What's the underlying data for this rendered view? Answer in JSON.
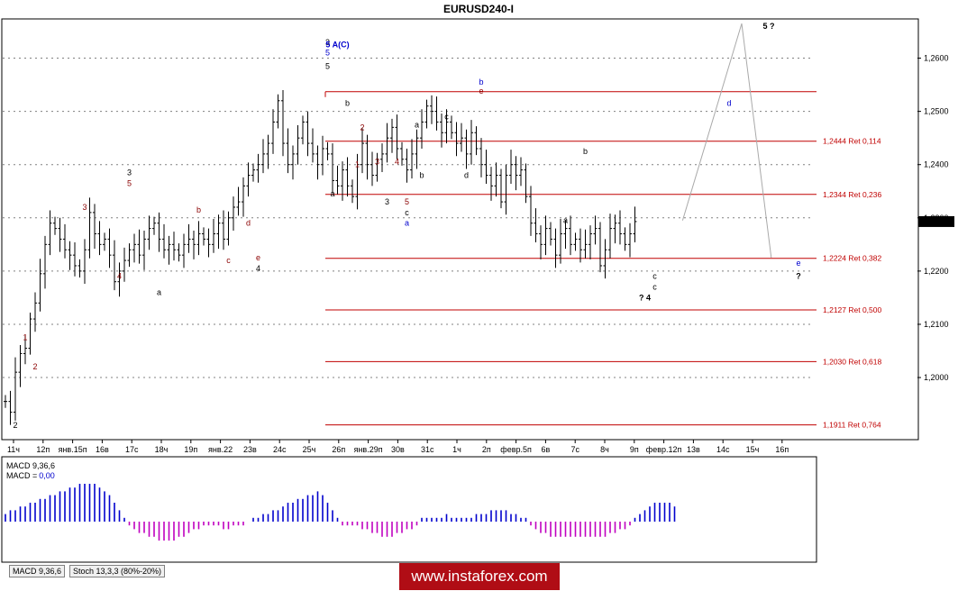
{
  "chart_data": {
    "type": "ohlc",
    "title": "EURUSD240-I",
    "symbol": "EURUSD",
    "timeframe": "H4",
    "last_price": "1,2293",
    "ylim": [
      1.1885,
      1.2672
    ],
    "y_ticks": [
      "1,2000",
      "1,2100",
      "1,2200",
      "1,2300",
      "1,2400",
      "1,2500",
      "1,2600"
    ],
    "x_labels": [
      "11ч",
      "12п",
      "янв.15п",
      "16в",
      "17с",
      "18ч",
      "19п",
      "янв.22",
      "23в",
      "24с",
      "25ч",
      "26п",
      "янв.29п",
      "30в",
      "31с",
      "1ч",
      "2п",
      "февр.5п",
      "6в",
      "7с",
      "8ч",
      "9п",
      "февр.12п",
      "13в",
      "14с",
      "15ч",
      "16п"
    ],
    "price_path": [
      1.1955,
      1.1935,
      1.201,
      1.2045,
      1.2055,
      1.211,
      1.214,
      1.2195,
      1.225,
      1.229,
      1.228,
      1.226,
      1.224,
      1.223,
      1.221,
      1.22,
      1.224,
      1.231,
      1.227,
      1.225,
      1.226,
      1.223,
      1.218,
      1.22,
      1.222,
      1.224,
      1.225,
      1.223,
      1.226,
      1.228,
      1.229,
      1.226,
      1.224,
      1.225,
      1.224,
      1.223,
      1.225,
      1.226,
      1.225,
      1.227,
      1.226,
      1.225,
      1.227,
      1.229,
      1.226,
      1.23,
      1.232,
      1.233,
      1.236,
      1.238,
      1.239,
      1.24,
      1.242,
      1.244,
      1.248,
      1.252,
      1.244,
      1.24,
      1.242,
      1.245,
      1.248,
      1.244,
      1.242,
      1.24,
      1.243,
      1.242,
      1.237,
      1.236,
      1.239,
      1.236,
      1.234,
      1.24,
      1.244,
      1.24,
      1.238,
      1.241,
      1.242,
      1.245,
      1.247,
      1.243,
      1.241,
      1.239,
      1.242,
      1.245,
      1.248,
      1.251,
      1.25,
      1.248,
      1.246,
      1.248,
      1.246,
      1.244,
      1.245,
      1.242,
      1.246,
      1.243,
      1.24,
      1.238,
      1.236,
      1.238,
      1.233,
      1.238,
      1.24,
      1.238,
      1.239,
      1.234,
      1.229,
      1.227,
      1.225,
      1.228,
      1.226,
      1.223,
      1.227,
      1.228,
      1.225,
      1.226,
      1.224,
      1.225,
      1.227,
      1.228,
      1.221,
      1.224,
      1.228,
      1.229,
      1.227,
      1.225,
      1.227,
      1.2293
    ],
    "fib_levels": [
      {
        "label": "1,2444 Ret 0,114",
        "value": 1.2444
      },
      {
        "label": "1,2344 Ret 0,236",
        "value": 1.2344
      },
      {
        "label": "1,2224 Ret 0,382",
        "value": 1.2224
      },
      {
        "label": "1,2127 Ret 0,500",
        "value": 1.2127
      },
      {
        "label": "1,2030 Ret 0,618",
        "value": 1.203
      },
      {
        "label": "1,1911 Ret 0,764",
        "value": 1.1911
      }
    ],
    "fib_top": 1.2537,
    "projection": [
      {
        "x": "13в",
        "y": 1.2295
      },
      {
        "x": "15ч",
        "y": 1.2665
      },
      {
        "x": "16п",
        "y": 1.2225
      }
    ],
    "wave_labels": [
      {
        "text": "2",
        "color": "#000000",
        "bar": 2,
        "price": 1.1905
      },
      {
        "text": "1",
        "color": "#8b0000",
        "bar": 4,
        "price": 1.207
      },
      {
        "text": "2",
        "color": "#8b0000",
        "bar": 6,
        "price": 1.2015
      },
      {
        "text": "3",
        "color": "#8b0000",
        "bar": 16,
        "price": 1.2315
      },
      {
        "text": "4",
        "color": "#8b0000",
        "bar": 23,
        "price": 1.2185
      },
      {
        "text": "3",
        "color": "#000000",
        "bar": 25,
        "price": 1.238
      },
      {
        "text": "5",
        "color": "#8b0000",
        "bar": 25,
        "price": 1.236
      },
      {
        "text": "a",
        "color": "#000000",
        "bar": 31,
        "price": 1.2155
      },
      {
        "text": "b",
        "color": "#8b0000",
        "bar": 39,
        "price": 1.231
      },
      {
        "text": "c",
        "color": "#8b0000",
        "bar": 45,
        "price": 1.2215
      },
      {
        "text": "d",
        "color": "#8b0000",
        "bar": 49,
        "price": 1.2285
      },
      {
        "text": "e",
        "color": "#8b0000",
        "bar": 51,
        "price": 1.222
      },
      {
        "text": "4",
        "color": "#000000",
        "bar": 51,
        "price": 1.22
      },
      {
        "text": "3",
        "color": "#000000",
        "bar": 65,
        "price": 1.2625
      },
      {
        "text": "5",
        "color": "#0000cd",
        "bar": 65,
        "price": 1.2605
      },
      {
        "text": "5",
        "color": "#000000",
        "bar": 65,
        "price": 1.258
      },
      {
        "text": "a",
        "color": "#000000",
        "bar": 66,
        "price": 1.234
      },
      {
        "text": "b",
        "color": "#000000",
        "bar": 69,
        "price": 1.251
      },
      {
        "text": "2",
        "color": "#8b0000",
        "bar": 72,
        "price": 1.2465
      },
      {
        "text": "1",
        "color": "#8b0000",
        "bar": 71,
        "price": 1.2395
      },
      {
        "text": "3",
        "color": "#8b0000",
        "bar": 75,
        "price": 1.24
      },
      {
        "text": "4",
        "color": "#8b0000",
        "bar": 79,
        "price": 1.24
      },
      {
        "text": "3",
        "color": "#000000",
        "bar": 77,
        "price": 1.2325
      },
      {
        "text": "a",
        "color": "#000000",
        "bar": 83,
        "price": 1.247
      },
      {
        "text": "5",
        "color": "#8b0000",
        "bar": 81,
        "price": 1.2325
      },
      {
        "text": "c",
        "color": "#000000",
        "bar": 81,
        "price": 1.2305
      },
      {
        "text": "a",
        "color": "#0000cd",
        "bar": 81,
        "price": 1.2285
      },
      {
        "text": "b",
        "color": "#000000",
        "bar": 84,
        "price": 1.2375
      },
      {
        "text": "c",
        "color": "#000000",
        "bar": 89,
        "price": 1.2485
      },
      {
        "text": "d",
        "color": "#000000",
        "bar": 93,
        "price": 1.2375
      },
      {
        "text": "b",
        "color": "#0000cd",
        "bar": 96,
        "price": 1.255
      },
      {
        "text": "e",
        "color": "#8b0000",
        "bar": 96,
        "price": 1.2533
      },
      {
        "text": "b",
        "color": "#000000",
        "bar": 117,
        "price": 1.242
      },
      {
        "text": "a",
        "color": "#000000",
        "bar": 113,
        "price": 1.229
      },
      {
        "text": "c",
        "color": "#000000",
        "bar": 131,
        "price": 1.2185
      },
      {
        "text": "c",
        "color": "#000000",
        "bar": 131,
        "price": 1.2165
      },
      {
        "text": "? 4",
        "color": "#000000",
        "bar": 129,
        "price": 1.2145
      },
      {
        "text": "5 A(C)",
        "color": "#0000cd",
        "bar": 67,
        "price": 1.262
      },
      {
        "text": "d",
        "color": "#0000cd",
        "bar": 146,
        "price": 1.251
      },
      {
        "text": "5 ?",
        "color": "#000000",
        "bar": 154,
        "price": 1.2655
      },
      {
        "text": "e",
        "color": "#0000cd",
        "bar": 160,
        "price": 1.221
      },
      {
        "text": "?",
        "color": "#000000",
        "bar": 160,
        "price": 1.2185
      }
    ],
    "macd": {
      "label": "MACD 9,36,6",
      "label2": "MACD =",
      "value": "0,00",
      "histogram": [
        2,
        3,
        3,
        4,
        4,
        5,
        5,
        6,
        6,
        7,
        7,
        8,
        8,
        9,
        9,
        10,
        10,
        10,
        10,
        9,
        8,
        7,
        5,
        3,
        1,
        -1,
        -2,
        -3,
        -3,
        -4,
        -4,
        -5,
        -5,
        -5,
        -5,
        -4,
        -4,
        -3,
        -2,
        -2,
        -1,
        -1,
        -1,
        -1,
        -2,
        -2,
        -1,
        -1,
        -1,
        0,
        1,
        1,
        2,
        2,
        3,
        3,
        4,
        5,
        5,
        6,
        6,
        7,
        7,
        8,
        7,
        5,
        3,
        1,
        -1,
        -1,
        -1,
        -1,
        -2,
        -2,
        -3,
        -3,
        -4,
        -4,
        -4,
        -3,
        -3,
        -2,
        -2,
        -1,
        1,
        1,
        1,
        1,
        1,
        2,
        1,
        1,
        1,
        1,
        1,
        2,
        2,
        2,
        3,
        3,
        3,
        3,
        2,
        2,
        1,
        1,
        -1,
        -2,
        -3,
        -3,
        -4,
        -4,
        -4,
        -4,
        -4,
        -4,
        -4,
        -4,
        -4,
        -4,
        -4,
        -4,
        -3,
        -3,
        -2,
        -2,
        -1,
        1,
        2,
        3,
        4,
        5,
        5,
        5,
        5,
        4
      ],
      "colors": {
        "positive": "#0000cd",
        "negative": "#c000c0"
      }
    },
    "grid": true
  },
  "tabs": [
    "MACD 9,36,6",
    "Stoch 13,3,3 (80%-20%)"
  ],
  "banner": "www.instaforex.com"
}
